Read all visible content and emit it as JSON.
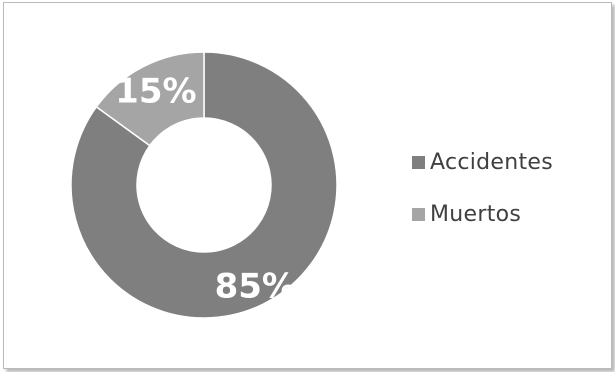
{
  "chart_data": {
    "type": "pie",
    "donut": true,
    "title": "",
    "categories": [
      "Accidentes",
      "Muertos"
    ],
    "values": [
      85,
      15
    ],
    "labels": [
      "85%",
      "15%"
    ],
    "colors": [
      "#7f7f7f",
      "#a5a5a5"
    ],
    "legend_position": "right"
  }
}
